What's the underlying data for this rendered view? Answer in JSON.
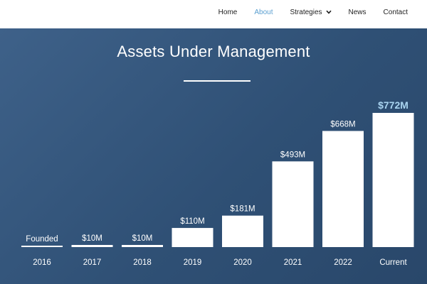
{
  "nav": {
    "items": [
      {
        "label": "Home",
        "active": false
      },
      {
        "label": "About",
        "active": true
      },
      {
        "label": "Strategies",
        "active": false,
        "has_dropdown": true,
        "icon": "chevron-down-icon"
      },
      {
        "label": "News",
        "active": false
      },
      {
        "label": "Contact",
        "active": false
      }
    ],
    "active_color": "#5a9fd0"
  },
  "hero": {
    "title": "Assets Under Management",
    "colors": {
      "bar": "#ffffff",
      "highlight_label": "#a9d4f0",
      "text": "#ffffff"
    }
  },
  "chart_data": {
    "type": "bar",
    "title": "Assets Under Management",
    "categories": [
      "2016",
      "2017",
      "2018",
      "2019",
      "2020",
      "2021",
      "2022",
      "Current"
    ],
    "values": [
      0,
      10,
      10,
      110,
      181,
      493,
      668,
      772
    ],
    "data_labels": [
      "Founded",
      "$10M",
      "$10M",
      "$110M",
      "$181M",
      "$493M",
      "$668M",
      "$772M"
    ],
    "unit": "$M",
    "highlight_index": 7,
    "ylim": [
      0,
      772
    ],
    "grid": false,
    "legend": "none"
  }
}
